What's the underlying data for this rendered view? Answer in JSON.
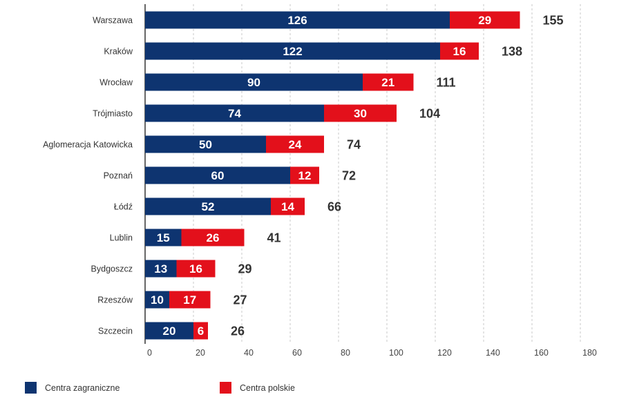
{
  "chart_data": {
    "type": "bar",
    "orientation": "horizontal",
    "stacked": true,
    "categories": [
      "Warszawa",
      "Kraków",
      "Wrocław",
      "Trójmiasto",
      "Aglomeracja Katowicka",
      "Poznań",
      "Łódź",
      "Lublin",
      "Bydgoszcz",
      "Rzeszów",
      "Szczecin"
    ],
    "series": [
      {
        "name": "Centra zagraniczne",
        "color": "#0e3470",
        "values": [
          126,
          122,
          90,
          74,
          50,
          60,
          52,
          15,
          13,
          10,
          20
        ]
      },
      {
        "name": "Centra polskie",
        "color": "#e3101b",
        "values": [
          29,
          16,
          21,
          30,
          24,
          12,
          14,
          26,
          16,
          17,
          6
        ]
      }
    ],
    "totals": [
      155,
      138,
      111,
      104,
      74,
      72,
      66,
      41,
      29,
      27,
      26
    ],
    "x_ticks": [
      "0",
      "20",
      "40",
      "60",
      "80",
      "100",
      "120",
      "140",
      "160",
      "180"
    ],
    "xlim": [
      0,
      180
    ],
    "grid": "vertical dashed",
    "legend_position": "bottom"
  }
}
